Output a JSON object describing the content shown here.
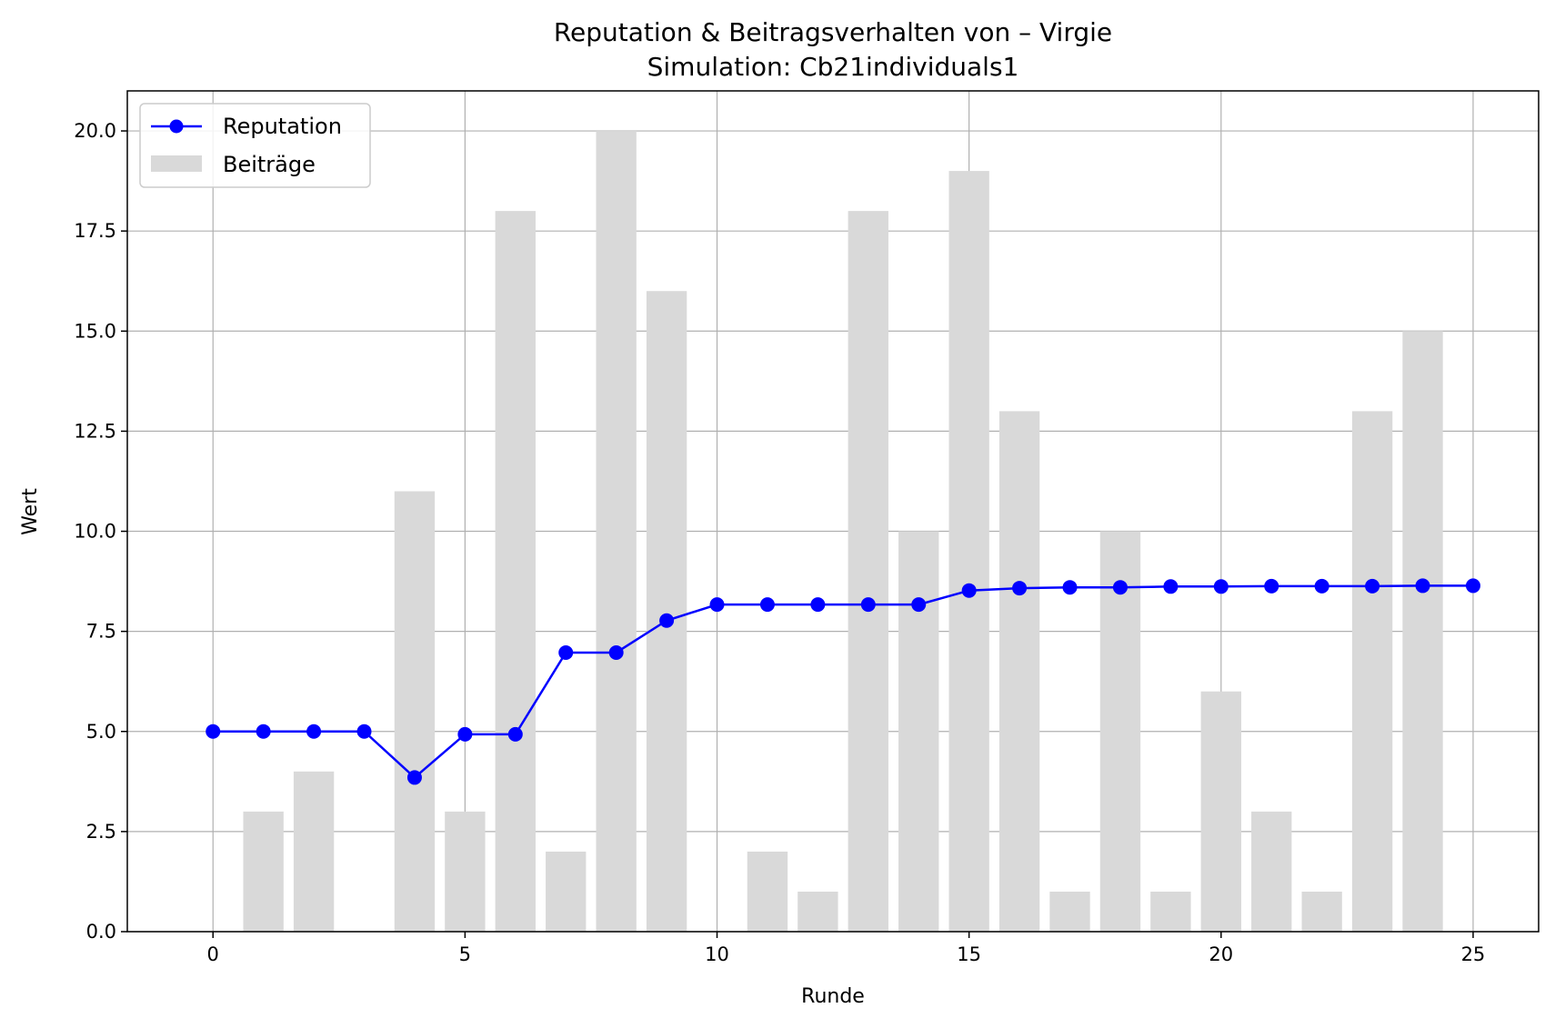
{
  "chart_data": {
    "type": "bar",
    "title": "Reputation & Beitragsverhalten von – Virgie",
    "subtitle": "Simulation: Cb21individuals1",
    "xlabel": "Runde",
    "ylabel": "Wert",
    "xlim": [
      -1.7,
      26.3
    ],
    "ylim": [
      0,
      21
    ],
    "x_ticks": [
      0,
      5,
      10,
      15,
      20,
      25
    ],
    "x_tick_labels": [
      "0",
      "5",
      "10",
      "15",
      "20",
      "25"
    ],
    "y_ticks": [
      0,
      2.5,
      5,
      7.5,
      10,
      12.5,
      15,
      17.5,
      20
    ],
    "y_tick_labels": [
      "0.0",
      "2.5",
      "5.0",
      "7.5",
      "10.0",
      "12.5",
      "15.0",
      "17.5",
      "20.0"
    ],
    "grid": true,
    "legend_position": "top-left",
    "x": [
      0,
      1,
      2,
      3,
      4,
      5,
      6,
      7,
      8,
      9,
      10,
      11,
      12,
      13,
      14,
      15,
      16,
      17,
      18,
      19,
      20,
      21,
      22,
      23,
      24,
      25
    ],
    "series": [
      {
        "name": "Beiträge",
        "type": "bar",
        "color": "#d9d9d9",
        "values": [
          0,
          3,
          4,
          0,
          11,
          3,
          18,
          2,
          20,
          16,
          0,
          2,
          1,
          18,
          10,
          19,
          13,
          1,
          10,
          1,
          6,
          3,
          1,
          13,
          15,
          0
        ]
      },
      {
        "name": "Reputation",
        "type": "line",
        "color": "#0000ff",
        "values": [
          5.0,
          5.0,
          5.0,
          5.0,
          3.85,
          4.93,
          4.93,
          6.97,
          6.97,
          7.77,
          8.17,
          8.17,
          8.17,
          8.17,
          8.17,
          8.52,
          8.58,
          8.6,
          8.6,
          8.62,
          8.62,
          8.63,
          8.63,
          8.63,
          8.64,
          8.64
        ]
      }
    ]
  }
}
